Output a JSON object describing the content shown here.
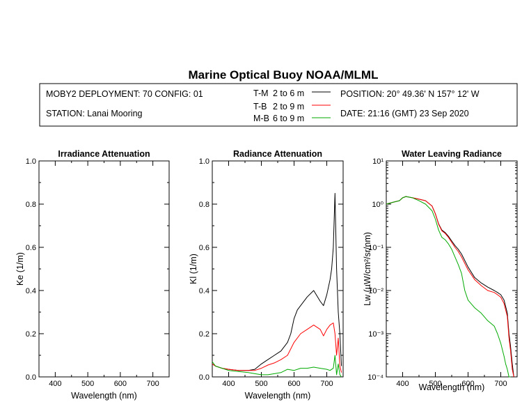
{
  "title": "Marine Optical Buoy NOAA/MLML",
  "header": {
    "deployment": "MOBY2 DEPLOYMENT: 70 CONFIG: 01",
    "station": "STATION: Lanai Mooring",
    "position": "POSITION: 20° 49.36' N   157° 12' W",
    "date": "DATE: 21:16 (GMT) 23 Sep 2020",
    "legend": [
      {
        "code": "T-M",
        "range": "2 to 6  m",
        "color": "#000000"
      },
      {
        "code": "T-B",
        "range": "2 to 9  m",
        "color": "#ff0000"
      },
      {
        "code": "M-B",
        "range": "6 to 9  m",
        "color": "#00aa00"
      }
    ]
  },
  "colors": {
    "tm": "#000000",
    "tb": "#ff0000",
    "mb": "#00aa00"
  },
  "chart_data": [
    {
      "type": "line",
      "title": "Irradiance Attenuation",
      "xlabel": "Wavelength (nm)",
      "ylabel": "Ke  (1/m)",
      "xlim": [
        350,
        750
      ],
      "ylim": [
        0,
        1
      ],
      "x_ticks": [
        400,
        500,
        600,
        700
      ],
      "y_ticks": [
        "0.0",
        "0.2",
        "0.4",
        "0.6",
        "0.8",
        "1.0"
      ],
      "series": []
    },
    {
      "type": "line",
      "title": "Radiance Attenuation",
      "xlabel": "Wavelength (nm)",
      "ylabel": "Kl  (1/m)",
      "xlim": [
        350,
        750
      ],
      "ylim": [
        0,
        1
      ],
      "x_ticks": [
        400,
        500,
        600,
        700
      ],
      "y_ticks": [
        "0.0",
        "0.2",
        "0.4",
        "0.6",
        "0.8",
        "1.0"
      ],
      "series": [
        {
          "name": "T-M",
          "color": "#000000",
          "x": [
            350,
            360,
            380,
            400,
            430,
            460,
            480,
            500,
            520,
            540,
            560,
            580,
            590,
            600,
            610,
            620,
            640,
            660,
            680,
            690,
            700,
            710,
            715,
            720,
            725,
            730,
            735,
            740,
            745
          ],
          "y": [
            0.06,
            0.05,
            0.04,
            0.035,
            0.03,
            0.03,
            0.035,
            0.06,
            0.08,
            0.1,
            0.12,
            0.16,
            0.2,
            0.27,
            0.31,
            0.33,
            0.37,
            0.4,
            0.35,
            0.33,
            0.38,
            0.45,
            0.5,
            0.6,
            0.85,
            0.5,
            0.3,
            0.2,
            0.05
          ]
        },
        {
          "name": "T-B",
          "color": "#ff0000",
          "x": [
            350,
            360,
            380,
            400,
            430,
            460,
            480,
            500,
            520,
            540,
            560,
            580,
            600,
            620,
            640,
            660,
            680,
            690,
            700,
            710,
            720,
            725,
            730,
            735,
            740,
            745
          ],
          "y": [
            0.06,
            0.05,
            0.04,
            0.035,
            0.03,
            0.03,
            0.03,
            0.04,
            0.055,
            0.065,
            0.08,
            0.1,
            0.16,
            0.2,
            0.22,
            0.24,
            0.22,
            0.19,
            0.22,
            0.24,
            0.25,
            0.2,
            0.1,
            0.18,
            0.05,
            0.02
          ]
        },
        {
          "name": "M-B",
          "color": "#00aa00",
          "x": [
            350,
            360,
            380,
            400,
            430,
            460,
            480,
            500,
            520,
            540,
            560,
            580,
            600,
            620,
            640,
            660,
            680,
            700,
            710,
            720,
            725,
            730,
            735,
            740,
            745
          ],
          "y": [
            0.07,
            0.05,
            0.04,
            0.03,
            0.025,
            0.02,
            0.015,
            0.01,
            0.01,
            0.015,
            0.02,
            0.035,
            0.03,
            0.04,
            0.04,
            0.045,
            0.04,
            0.035,
            0.03,
            0.04,
            0.1,
            0.01,
            0.06,
            0.01,
            0.0
          ]
        }
      ]
    },
    {
      "type": "line",
      "title": "Water Leaving Radiance",
      "xlabel": "Wavelength (nm)",
      "ylabel": "Lw  (µW/cm²/sr/nm)",
      "xlim": [
        350,
        750
      ],
      "ylim": [
        0.0001,
        10
      ],
      "yscale": "log",
      "x_ticks": [
        400,
        500,
        600,
        700
      ],
      "y_ticks": [
        "10⁻⁴",
        "10⁻³",
        "10⁻²",
        "10⁻¹",
        "10⁰",
        "10¹"
      ],
      "series": [
        {
          "name": "T-M",
          "color": "#000000",
          "x": [
            350,
            370,
            390,
            400,
            410,
            430,
            450,
            470,
            490,
            500,
            510,
            520,
            530,
            540,
            550,
            560,
            570,
            580,
            600,
            620,
            640,
            660,
            680,
            690,
            700,
            710,
            720,
            725,
            730,
            735,
            740
          ],
          "y": [
            1.0,
            1.1,
            1.2,
            1.4,
            1.5,
            1.4,
            1.3,
            1.2,
            0.9,
            0.6,
            0.35,
            0.25,
            0.22,
            0.18,
            0.14,
            0.11,
            0.09,
            0.07,
            0.035,
            0.02,
            0.015,
            0.012,
            0.01,
            0.009,
            0.008,
            0.006,
            0.003,
            0.001,
            0.0005,
            0.0002,
            0.0001
          ]
        },
        {
          "name": "T-B",
          "color": "#ff0000",
          "x": [
            350,
            370,
            390,
            400,
            410,
            430,
            450,
            470,
            490,
            500,
            510,
            520,
            530,
            540,
            550,
            560,
            570,
            580,
            600,
            620,
            640,
            660,
            680,
            690,
            700,
            710,
            720,
            725,
            730,
            735,
            740
          ],
          "y": [
            1.0,
            1.1,
            1.2,
            1.4,
            1.5,
            1.4,
            1.3,
            1.2,
            0.9,
            0.6,
            0.34,
            0.24,
            0.21,
            0.17,
            0.13,
            0.1,
            0.08,
            0.06,
            0.03,
            0.018,
            0.013,
            0.01,
            0.009,
            0.008,
            0.007,
            0.005,
            0.0025,
            0.0008,
            0.0004,
            0.00015,
            0.0001
          ]
        },
        {
          "name": "M-B",
          "color": "#00aa00",
          "x": [
            350,
            370,
            390,
            400,
            410,
            430,
            450,
            470,
            490,
            500,
            510,
            520,
            530,
            540,
            550,
            560,
            570,
            580,
            590,
            600,
            620,
            640,
            660,
            680,
            690,
            700,
            710,
            715,
            720,
            725,
            730
          ],
          "y": [
            1.0,
            1.1,
            1.2,
            1.4,
            1.5,
            1.4,
            1.2,
            1.0,
            0.7,
            0.45,
            0.25,
            0.17,
            0.15,
            0.12,
            0.09,
            0.06,
            0.04,
            0.025,
            0.01,
            0.006,
            0.004,
            0.003,
            0.002,
            0.0015,
            0.001,
            0.0006,
            0.0003,
            0.0002,
            0.00015,
            0.0001,
            0.0001
          ]
        }
      ]
    }
  ]
}
